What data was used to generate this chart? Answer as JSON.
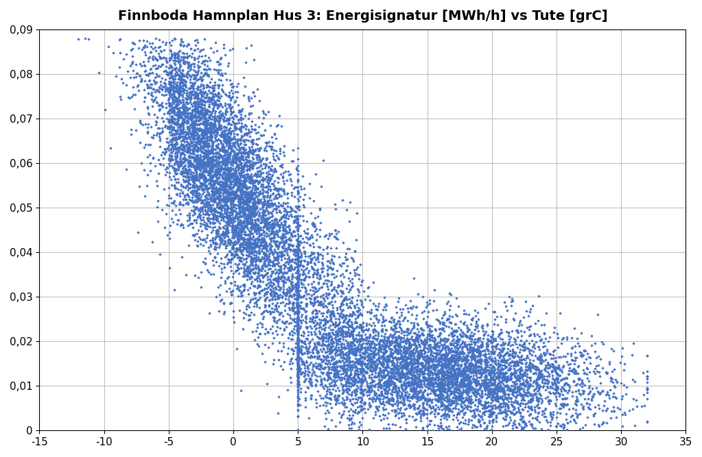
{
  "title": "Finnboda Hamnplan Hus 3: Energisignatur [MWh/h] vs Tute [grC]",
  "xlim": [
    -15,
    35
  ],
  "ylim": [
    0,
    0.09
  ],
  "xticks": [
    -15,
    -10,
    -5,
    0,
    5,
    10,
    15,
    20,
    25,
    30,
    35
  ],
  "yticks": [
    0,
    0.01,
    0.02,
    0.03,
    0.04,
    0.05,
    0.06,
    0.07,
    0.08,
    0.09
  ],
  "marker_color": "#4472C4",
  "marker_size": 5,
  "bg_color": "#FFFFFF",
  "grid_color": "#C0C0C0",
  "title_fontsize": 14,
  "tick_fontsize": 11,
  "seed": 12345
}
